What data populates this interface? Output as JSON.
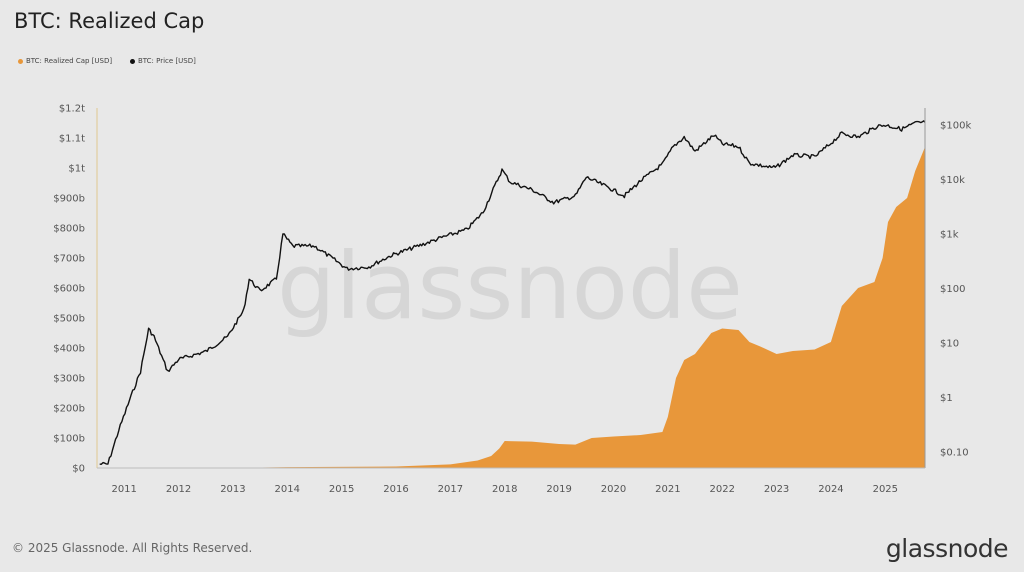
{
  "title": "BTC: Realized Cap",
  "footer": {
    "copyright": "© 2025 Glassnode. All Rights Reserved.",
    "logo": "glassnode"
  },
  "watermark": "glassnode",
  "chart_data": {
    "type": "area+line",
    "title": "BTC: Realized Cap",
    "legend_position": "top-left",
    "grid": false,
    "x_ticks": [
      "2011",
      "2012",
      "2013",
      "2014",
      "2015",
      "2016",
      "2017",
      "2018",
      "2019",
      "2020",
      "2021",
      "2022",
      "2023",
      "2024",
      "2025"
    ],
    "xlim": [
      2010.5,
      2025.73
    ],
    "y_left": {
      "ticks": [
        "$0",
        "$100b",
        "$200b",
        "$300b",
        "$400b",
        "$500b",
        "$600b",
        "$700b",
        "$800b",
        "$900b",
        "$1t",
        "$1.1t",
        "$1.2t"
      ],
      "range_billions": [
        0,
        1200
      ]
    },
    "y_right": {
      "scale": "log",
      "ticks": [
        "$0.10",
        "$1",
        "$10",
        "$100",
        "$1k",
        "$10k",
        "$100k"
      ],
      "range_usd": [
        0.04,
        200000
      ]
    },
    "series": [
      {
        "name": "BTC: Realized Cap [USD]",
        "color": "#e8973a",
        "axis": "left",
        "unit": "billion USD",
        "points": [
          [
            2010.55,
            0
          ],
          [
            2013.0,
            0.5
          ],
          [
            2014.0,
            3
          ],
          [
            2016.0,
            5
          ],
          [
            2017.0,
            12
          ],
          [
            2017.5,
            25
          ],
          [
            2017.75,
            40
          ],
          [
            2017.9,
            65
          ],
          [
            2018.0,
            90
          ],
          [
            2018.5,
            88
          ],
          [
            2019.0,
            80
          ],
          [
            2019.3,
            78
          ],
          [
            2019.6,
            100
          ],
          [
            2020.0,
            105
          ],
          [
            2020.5,
            110
          ],
          [
            2020.9,
            120
          ],
          [
            2021.0,
            170
          ],
          [
            2021.15,
            300
          ],
          [
            2021.3,
            360
          ],
          [
            2021.5,
            380
          ],
          [
            2021.8,
            450
          ],
          [
            2022.0,
            465
          ],
          [
            2022.3,
            460
          ],
          [
            2022.5,
            420
          ],
          [
            2022.7,
            405
          ],
          [
            2023.0,
            380
          ],
          [
            2023.3,
            390
          ],
          [
            2023.7,
            395
          ],
          [
            2024.0,
            420
          ],
          [
            2024.2,
            540
          ],
          [
            2024.5,
            600
          ],
          [
            2024.8,
            620
          ],
          [
            2024.95,
            700
          ],
          [
            2025.05,
            820
          ],
          [
            2025.2,
            870
          ],
          [
            2025.4,
            900
          ],
          [
            2025.55,
            990
          ],
          [
            2025.73,
            1070
          ]
        ]
      },
      {
        "name": "BTC: Price [USD]",
        "color": "#111111",
        "axis": "right",
        "unit": "USD",
        "points": [
          [
            2010.55,
            0.06
          ],
          [
            2010.7,
            0.06
          ],
          [
            2010.9,
            0.25
          ],
          [
            2011.1,
            0.9
          ],
          [
            2011.3,
            3
          ],
          [
            2011.45,
            18
          ],
          [
            2011.55,
            13
          ],
          [
            2011.8,
            3
          ],
          [
            2012.0,
            5
          ],
          [
            2012.5,
            7
          ],
          [
            2012.9,
            13
          ],
          [
            2013.2,
            40
          ],
          [
            2013.3,
            150
          ],
          [
            2013.5,
            90
          ],
          [
            2013.8,
            150
          ],
          [
            2013.92,
            1000
          ],
          [
            2014.1,
            600
          ],
          [
            2014.5,
            600
          ],
          [
            2014.9,
            320
          ],
          [
            2015.1,
            230
          ],
          [
            2015.5,
            250
          ],
          [
            2015.9,
            400
          ],
          [
            2016.5,
            650
          ],
          [
            2016.9,
            900
          ],
          [
            2017.3,
            1200
          ],
          [
            2017.6,
            2500
          ],
          [
            2017.95,
            15000
          ],
          [
            2018.1,
            9000
          ],
          [
            2018.5,
            6500
          ],
          [
            2018.9,
            3800
          ],
          [
            2019.3,
            5000
          ],
          [
            2019.5,
            11000
          ],
          [
            2019.9,
            7200
          ],
          [
            2020.2,
            5000
          ],
          [
            2020.5,
            9500
          ],
          [
            2020.9,
            19000
          ],
          [
            2021.1,
            40000
          ],
          [
            2021.3,
            60000
          ],
          [
            2021.5,
            33000
          ],
          [
            2021.85,
            65000
          ],
          [
            2022.0,
            45000
          ],
          [
            2022.3,
            40000
          ],
          [
            2022.5,
            20000
          ],
          [
            2022.9,
            16500
          ],
          [
            2023.0,
            17000
          ],
          [
            2023.3,
            28000
          ],
          [
            2023.7,
            26000
          ],
          [
            2023.95,
            42000
          ],
          [
            2024.2,
            70000
          ],
          [
            2024.5,
            60000
          ],
          [
            2024.85,
            95000
          ],
          [
            2025.0,
            100000
          ],
          [
            2025.3,
            84000
          ],
          [
            2025.55,
            108000
          ],
          [
            2025.73,
            112000
          ]
        ]
      }
    ]
  }
}
